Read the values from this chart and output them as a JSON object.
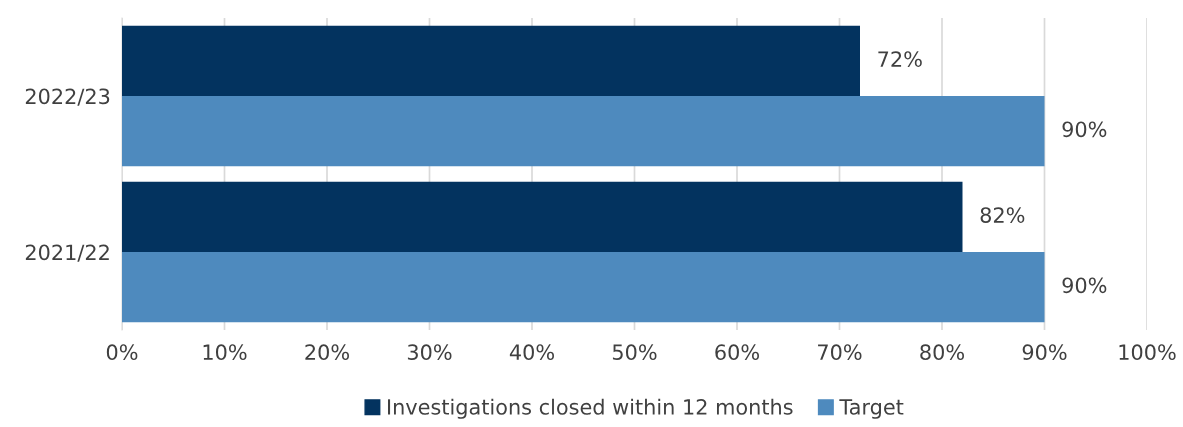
{
  "chart_data": {
    "type": "bar",
    "orientation": "horizontal",
    "categories": [
      "2022/23",
      "2021/22"
    ],
    "series": [
      {
        "name": "Investigations closed within 12 months",
        "color": "#03335f",
        "values": [
          72,
          82
        ],
        "value_labels": [
          "72%",
          "82%"
        ]
      },
      {
        "name": "Target",
        "color": "#4e8abe",
        "values": [
          90,
          90
        ],
        "value_labels": [
          "90%",
          "90%"
        ]
      }
    ],
    "xlim": [
      0,
      100
    ],
    "xticks": [
      {
        "value": 0,
        "label": "0%"
      },
      {
        "value": 10,
        "label": "10%"
      },
      {
        "value": 20,
        "label": "20%"
      },
      {
        "value": 30,
        "label": "30%"
      },
      {
        "value": 40,
        "label": "40%"
      },
      {
        "value": 50,
        "label": "50%"
      },
      {
        "value": 60,
        "label": "60%"
      },
      {
        "value": 70,
        "label": "70%"
      },
      {
        "value": 80,
        "label": "80%"
      },
      {
        "value": 90,
        "label": "90%"
      },
      {
        "value": 100,
        "label": "100%"
      }
    ],
    "grid": "x",
    "legend": "bottom"
  }
}
